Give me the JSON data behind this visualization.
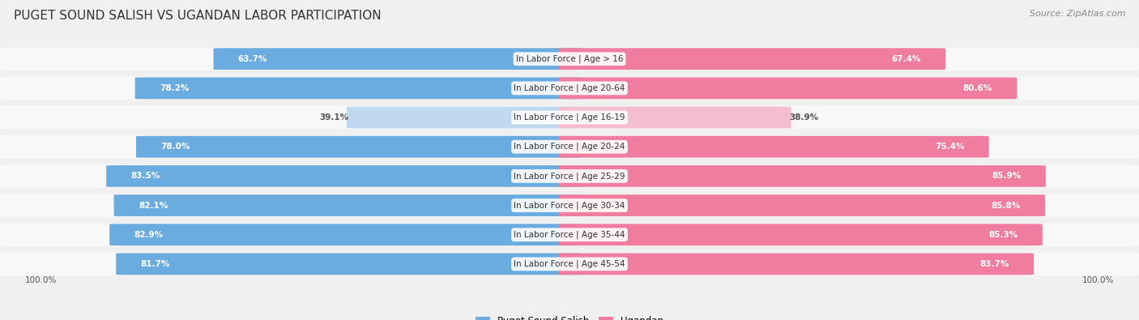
{
  "title": "PUGET SOUND SALISH VS UGANDAN LABOR PARTICIPATION",
  "source": "Source: ZipAtlas.com",
  "categories": [
    "In Labor Force | Age > 16",
    "In Labor Force | Age 20-64",
    "In Labor Force | Age 16-19",
    "In Labor Force | Age 20-24",
    "In Labor Force | Age 25-29",
    "In Labor Force | Age 30-34",
    "In Labor Force | Age 35-44",
    "In Labor Force | Age 45-54"
  ],
  "left_values": [
    63.7,
    78.2,
    39.1,
    78.0,
    83.5,
    82.1,
    82.9,
    81.7
  ],
  "right_values": [
    67.4,
    80.6,
    38.9,
    75.4,
    85.9,
    85.8,
    85.3,
    83.7
  ],
  "left_color": "#6aabe0",
  "right_color": "#f07ca0",
  "left_color_light": "#c0d8f0",
  "right_color_light": "#f5bdd0",
  "left_label": "Puget Sound Salish",
  "right_label": "Ugandan",
  "bg_color": "#f0f0f0",
  "row_bg_color": "#e8e8e8",
  "bar_bg_color": "#f8f8f8",
  "title_fontsize": 11,
  "source_fontsize": 8,
  "cat_fontsize": 7.5,
  "value_fontsize": 7.5,
  "max_value": 100.0
}
